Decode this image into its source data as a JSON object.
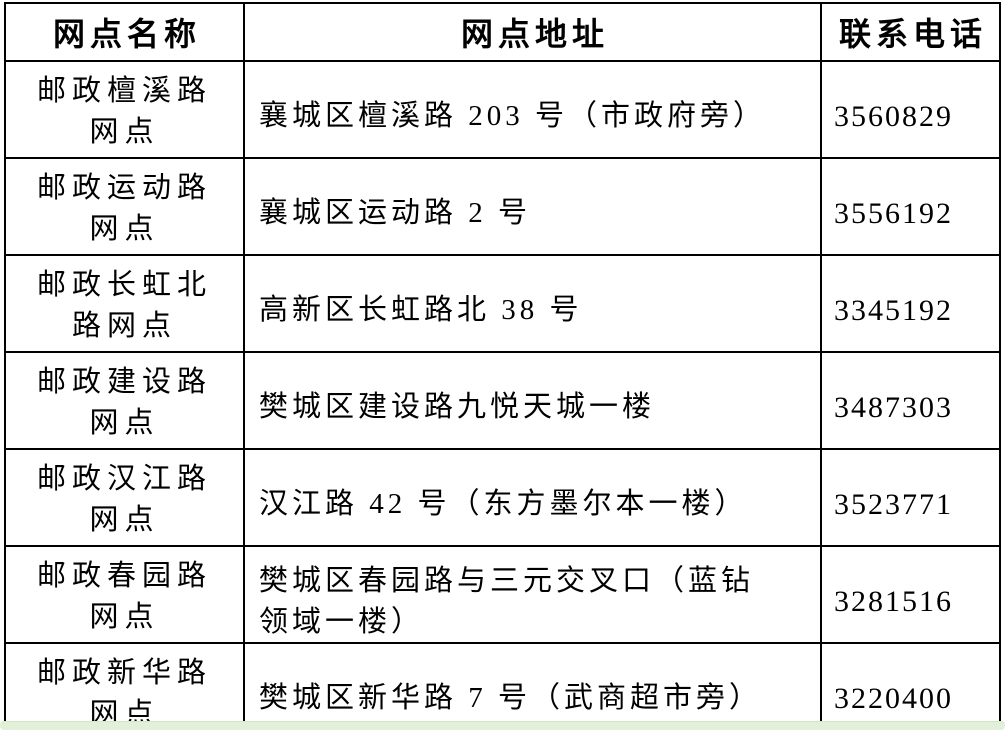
{
  "table": {
    "headers": {
      "name": "网点名称",
      "address": "网点地址",
      "phone": "联系电话"
    },
    "rows": [
      {
        "name": "邮政檀溪路网点",
        "address": "襄城区檀溪路 203 号（市政府旁）",
        "phone": "3560829"
      },
      {
        "name": "邮政运动路网点",
        "address": "襄城区运动路 2 号",
        "phone": "3556192"
      },
      {
        "name": "邮政长虹北路网点",
        "address": "高新区长虹路北 38 号",
        "phone": "3345192"
      },
      {
        "name": "邮政建设路网点",
        "address": "樊城区建设路九悦天城一楼",
        "phone": "3487303"
      },
      {
        "name": "邮政汉江路网点",
        "address": "汉江路 42 号（东方墨尔本一楼）",
        "phone": "3523771"
      },
      {
        "name": "邮政春园路网点",
        "address": "樊城区春园路与三元交叉口（蓝钻领域一楼）",
        "phone": "3281516"
      },
      {
        "name": "邮政新华路网点",
        "address": "樊城区新华路 7 号（武商超市旁）",
        "phone": "3220400"
      }
    ]
  },
  "colors": {
    "border": "#000000",
    "text": "#000000",
    "background": "#ffffff",
    "highlight_strip": "#e2f0da"
  }
}
